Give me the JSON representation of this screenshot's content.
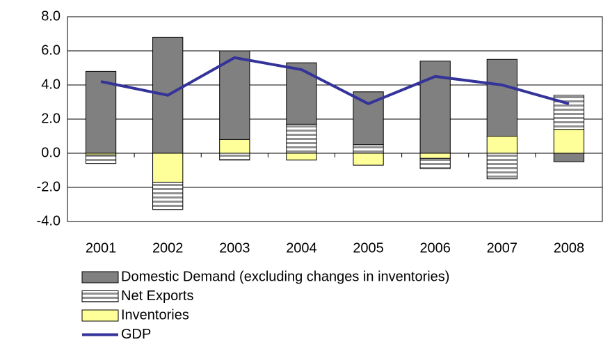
{
  "chart_data": {
    "type": "bar",
    "categories": [
      "2001",
      "2002",
      "2003",
      "2004",
      "2005",
      "2006",
      "2007",
      "2008"
    ],
    "series": [
      {
        "name": "Inventories",
        "color": "#ffff99",
        "values": [
          -0.1,
          -1.7,
          0.8,
          -0.4,
          -0.7,
          -0.3,
          1.0,
          1.4
        ]
      },
      {
        "name": "Net Exports",
        "color": "#909090",
        "pattern": "horizontal-stripes",
        "values": [
          -0.5,
          -1.6,
          -0.4,
          1.7,
          0.5,
          -0.6,
          -1.5,
          2.0
        ]
      },
      {
        "name": "Domestic Demand (excluding changes in inventories)",
        "color": "#808080",
        "values": [
          4.8,
          6.8,
          5.2,
          3.6,
          3.1,
          5.4,
          4.5,
          -0.5
        ]
      },
      {
        "name": "GDP",
        "type": "line",
        "color": "#333399",
        "values": [
          4.2,
          3.4,
          5.6,
          4.9,
          2.9,
          4.5,
          4.0,
          2.9
        ]
      }
    ],
    "legend_order": [
      2,
      1,
      0,
      3
    ],
    "ylim": [
      -4,
      8
    ],
    "yticks": [
      {
        "value": -4,
        "label": "-4.0"
      },
      {
        "value": -2,
        "label": "-2.0"
      },
      {
        "value": 0,
        "label": "0.0"
      },
      {
        "value": 2,
        "label": "2.0"
      },
      {
        "value": 4,
        "label": "4.0"
      },
      {
        "value": 6,
        "label": "6.0"
      },
      {
        "value": 8,
        "label": "8.0"
      }
    ],
    "grid": true,
    "legend": "bottom"
  }
}
